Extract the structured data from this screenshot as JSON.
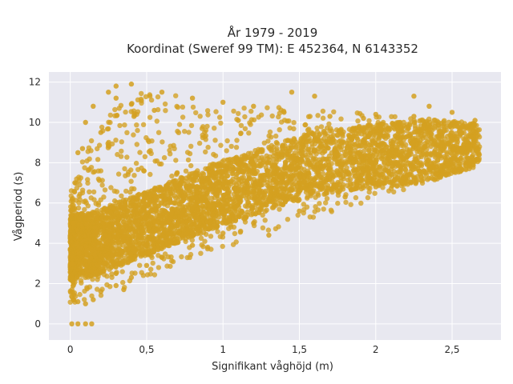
{
  "chart_data": {
    "type": "scatter",
    "title_line1": "År 1979 - 2019",
    "title_line2": "Koordinat (Sweref 99 TM): E 452364, N 6143352",
    "xlabel": "Signifikant våghöjd (m)",
    "ylabel": "Vågperiod (s)",
    "xlim": [
      -0.14,
      2.82
    ],
    "ylim": [
      -0.8,
      12.5
    ],
    "x_ticks": [
      0,
      0.5,
      1,
      1.5,
      2,
      2.5
    ],
    "x_tick_labels": [
      "0",
      "0,5",
      "1",
      "1,5",
      "2",
      "2,5"
    ],
    "y_ticks": [
      0,
      2,
      4,
      6,
      8,
      10,
      12
    ],
    "y_tick_labels": [
      "0",
      "2",
      "4",
      "6",
      "8",
      "10",
      "12"
    ],
    "grid": true,
    "colors": {
      "points": "#d4a020",
      "plot_background": "#e8e8f0",
      "grid": "#ffffff"
    },
    "series": [
      {
        "values": [
          [
            0.01,
            0.0
          ],
          [
            0.05,
            0.0
          ],
          [
            0.1,
            0.0
          ],
          [
            0.14,
            0.0
          ],
          [
            0.02,
            1.2
          ],
          [
            0.05,
            1.1
          ],
          [
            0.1,
            1.0
          ],
          [
            0.15,
            1.2
          ],
          [
            0.2,
            1.6
          ],
          [
            0.3,
            1.9
          ],
          [
            0.4,
            2.3
          ],
          [
            0.5,
            2.9
          ],
          [
            0.6,
            3.3
          ],
          [
            0.8,
            3.9
          ],
          [
            1.0,
            4.5
          ],
          [
            1.2,
            5.0
          ],
          [
            1.5,
            5.6
          ],
          [
            1.8,
            6.3
          ],
          [
            2.0,
            6.8
          ],
          [
            2.2,
            7.3
          ],
          [
            2.4,
            7.8
          ],
          [
            2.5,
            8.2
          ],
          [
            2.6,
            8.7
          ],
          [
            2.62,
            9.3
          ],
          [
            2.65,
            10.1
          ],
          [
            2.5,
            10.5
          ],
          [
            2.25,
            10.3
          ],
          [
            2.0,
            10.4
          ],
          [
            1.7,
            10.3
          ],
          [
            1.4,
            10.5
          ],
          [
            1.2,
            10.8
          ],
          [
            1.0,
            11.0
          ],
          [
            0.8,
            11.2
          ],
          [
            0.6,
            11.5
          ],
          [
            0.4,
            11.9
          ],
          [
            0.3,
            11.8
          ],
          [
            0.25,
            11.5
          ],
          [
            0.15,
            10.8
          ],
          [
            0.1,
            10.0
          ],
          [
            0.05,
            8.5
          ],
          [
            0.03,
            7.0
          ],
          [
            0.02,
            5.0
          ],
          [
            0.01,
            3.0
          ],
          [
            0.3,
            11.2
          ],
          [
            0.3,
            2.5
          ],
          [
            0.5,
            3.5
          ],
          [
            0.35,
            1.7
          ],
          [
            0.4,
            10.9
          ],
          [
            0.55,
            10.6
          ],
          [
            1.1,
            10.1
          ],
          [
            1.35,
            9.0
          ],
          [
            1.85,
            9.7
          ],
          [
            2.3,
            9.5
          ],
          [
            2.55,
            9.6
          ],
          [
            1.45,
            11.5
          ],
          [
            1.6,
            11.3
          ],
          [
            2.25,
            11.3
          ],
          [
            2.35,
            10.8
          ],
          [
            1.92,
            10.2
          ],
          [
            0.58,
            4.1
          ],
          [
            0.9,
            3.8
          ],
          [
            1.3,
            4.4
          ],
          [
            1.0,
            5.8
          ],
          [
            1.5,
            7.0
          ],
          [
            2.0,
            8.0
          ],
          [
            0.7,
            7.5
          ],
          [
            0.2,
            9.5
          ],
          [
            0.08,
            8.7
          ]
        ]
      }
    ]
  }
}
